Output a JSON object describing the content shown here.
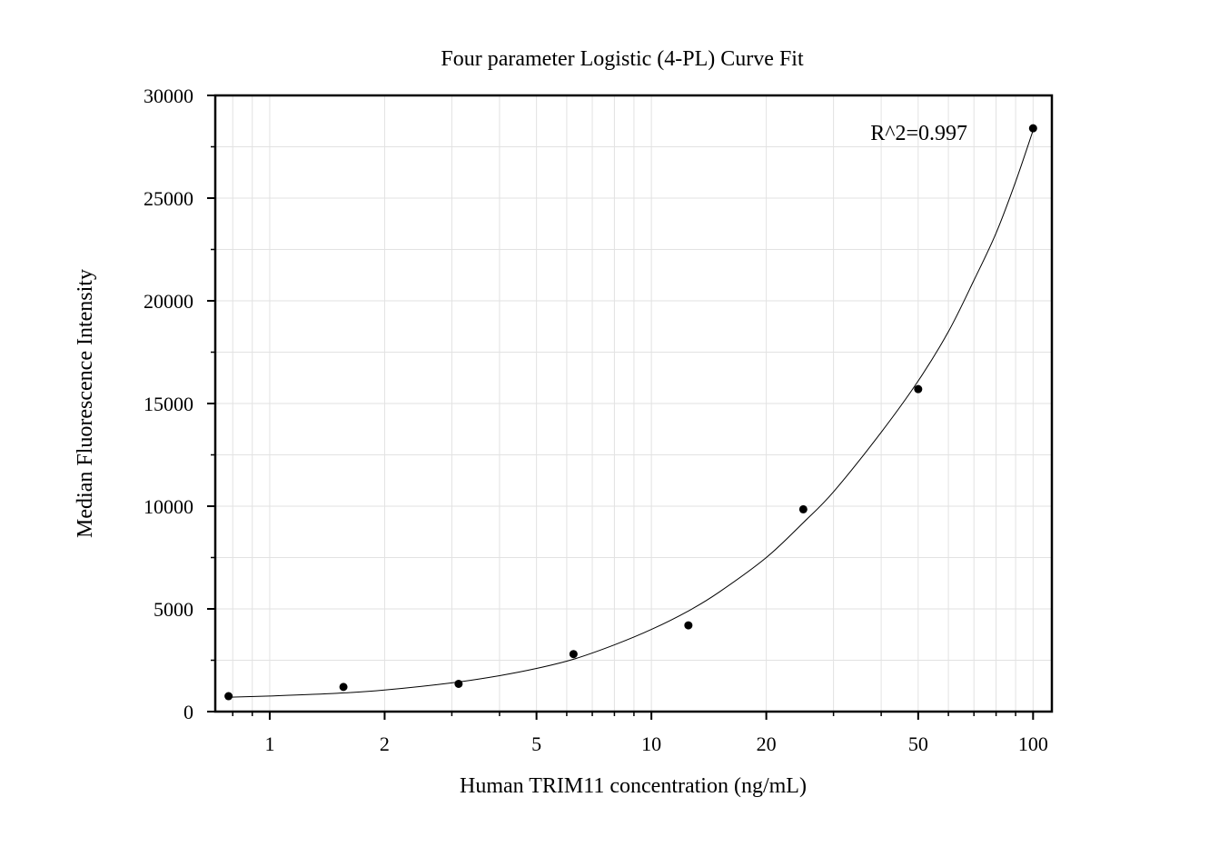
{
  "chart_data": {
    "type": "scatter",
    "title": "Four parameter Logistic (4-PL) Curve Fit",
    "xlabel": "Human TRIM11 concentration (ng/mL)",
    "ylabel": "Median Fluorescence Intensity",
    "x_scale": "log",
    "xlim": [
      0.72,
      112
    ],
    "ylim": [
      0,
      30000
    ],
    "x_ticks": [
      1,
      2,
      5,
      10,
      20,
      50,
      100
    ],
    "x_tick_labels": [
      "1",
      "2",
      "5",
      "10",
      "20",
      "50",
      "100"
    ],
    "y_ticks": [
      0,
      5000,
      10000,
      15000,
      20000,
      25000,
      30000
    ],
    "y_tick_labels": [
      "0",
      "5000",
      "10000",
      "15000",
      "20000",
      "25000",
      "30000"
    ],
    "grid": true,
    "annotation": "R^2=0.997",
    "series": [
      {
        "kind": "points",
        "x": [
          0.78,
          1.56,
          3.125,
          6.25,
          12.5,
          25,
          50,
          100
        ],
        "y": [
          750,
          1200,
          1350,
          2800,
          4200,
          9850,
          15700,
          28400
        ]
      },
      {
        "kind": "fit_curve",
        "x": [
          0.78,
          1,
          1.5,
          2,
          3,
          4,
          5,
          6.25,
          8,
          10,
          12.5,
          15,
          20,
          25,
          30,
          40,
          50,
          60,
          70,
          80,
          90,
          100
        ],
        "y": [
          700,
          760,
          890,
          1050,
          1400,
          1750,
          2100,
          2550,
          3250,
          4000,
          4900,
          5800,
          7500,
          9200,
          10700,
          13600,
          16100,
          18500,
          21000,
          23300,
          25800,
          28300
        ]
      }
    ],
    "colors": {
      "points": "#000000",
      "curve": "#000000",
      "grid": "#e2e2e2",
      "axes": "#000000"
    }
  }
}
